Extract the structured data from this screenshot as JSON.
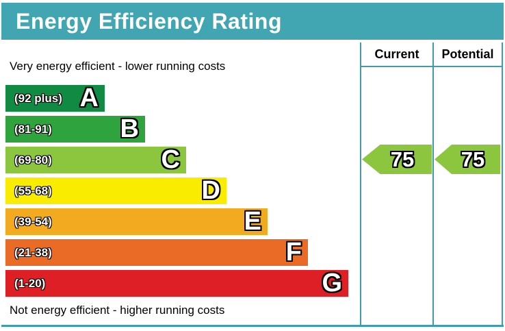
{
  "header": {
    "title": "Energy Efficiency Rating"
  },
  "notes": {
    "top": "Very energy efficient - lower running costs",
    "bottom": "Not energy efficient - higher running costs"
  },
  "columns": {
    "current": "Current",
    "potential": "Potential"
  },
  "chart_data": {
    "type": "bar",
    "title": "Energy Efficiency Rating",
    "bands": [
      {
        "letter": "A",
        "range_label": "(92 plus)",
        "min": 92,
        "max": 100,
        "color": "#118a43"
      },
      {
        "letter": "B",
        "range_label": "(81-91)",
        "min": 81,
        "max": 91,
        "color": "#2fa33e"
      },
      {
        "letter": "C",
        "range_label": "(69-80)",
        "min": 69,
        "max": 80,
        "color": "#8cc63f"
      },
      {
        "letter": "D",
        "range_label": "(55-68)",
        "min": 55,
        "max": 68,
        "color": "#f9ec00"
      },
      {
        "letter": "E",
        "range_label": "(39-54)",
        "min": 39,
        "max": 54,
        "color": "#f2aa20"
      },
      {
        "letter": "F",
        "range_label": "(21-38)",
        "min": 21,
        "max": 38,
        "color": "#ea6b25"
      },
      {
        "letter": "G",
        "range_label": "(1-20)",
        "min": 1,
        "max": 20,
        "color": "#de1f26"
      }
    ],
    "current": {
      "value": "75",
      "band": "C",
      "color": "#8cc63f"
    },
    "potential": {
      "value": "75",
      "band": "C",
      "color": "#8cc63f"
    }
  },
  "colors": {
    "banner": "#42a5b2",
    "table_lines": "#3d9dab"
  }
}
